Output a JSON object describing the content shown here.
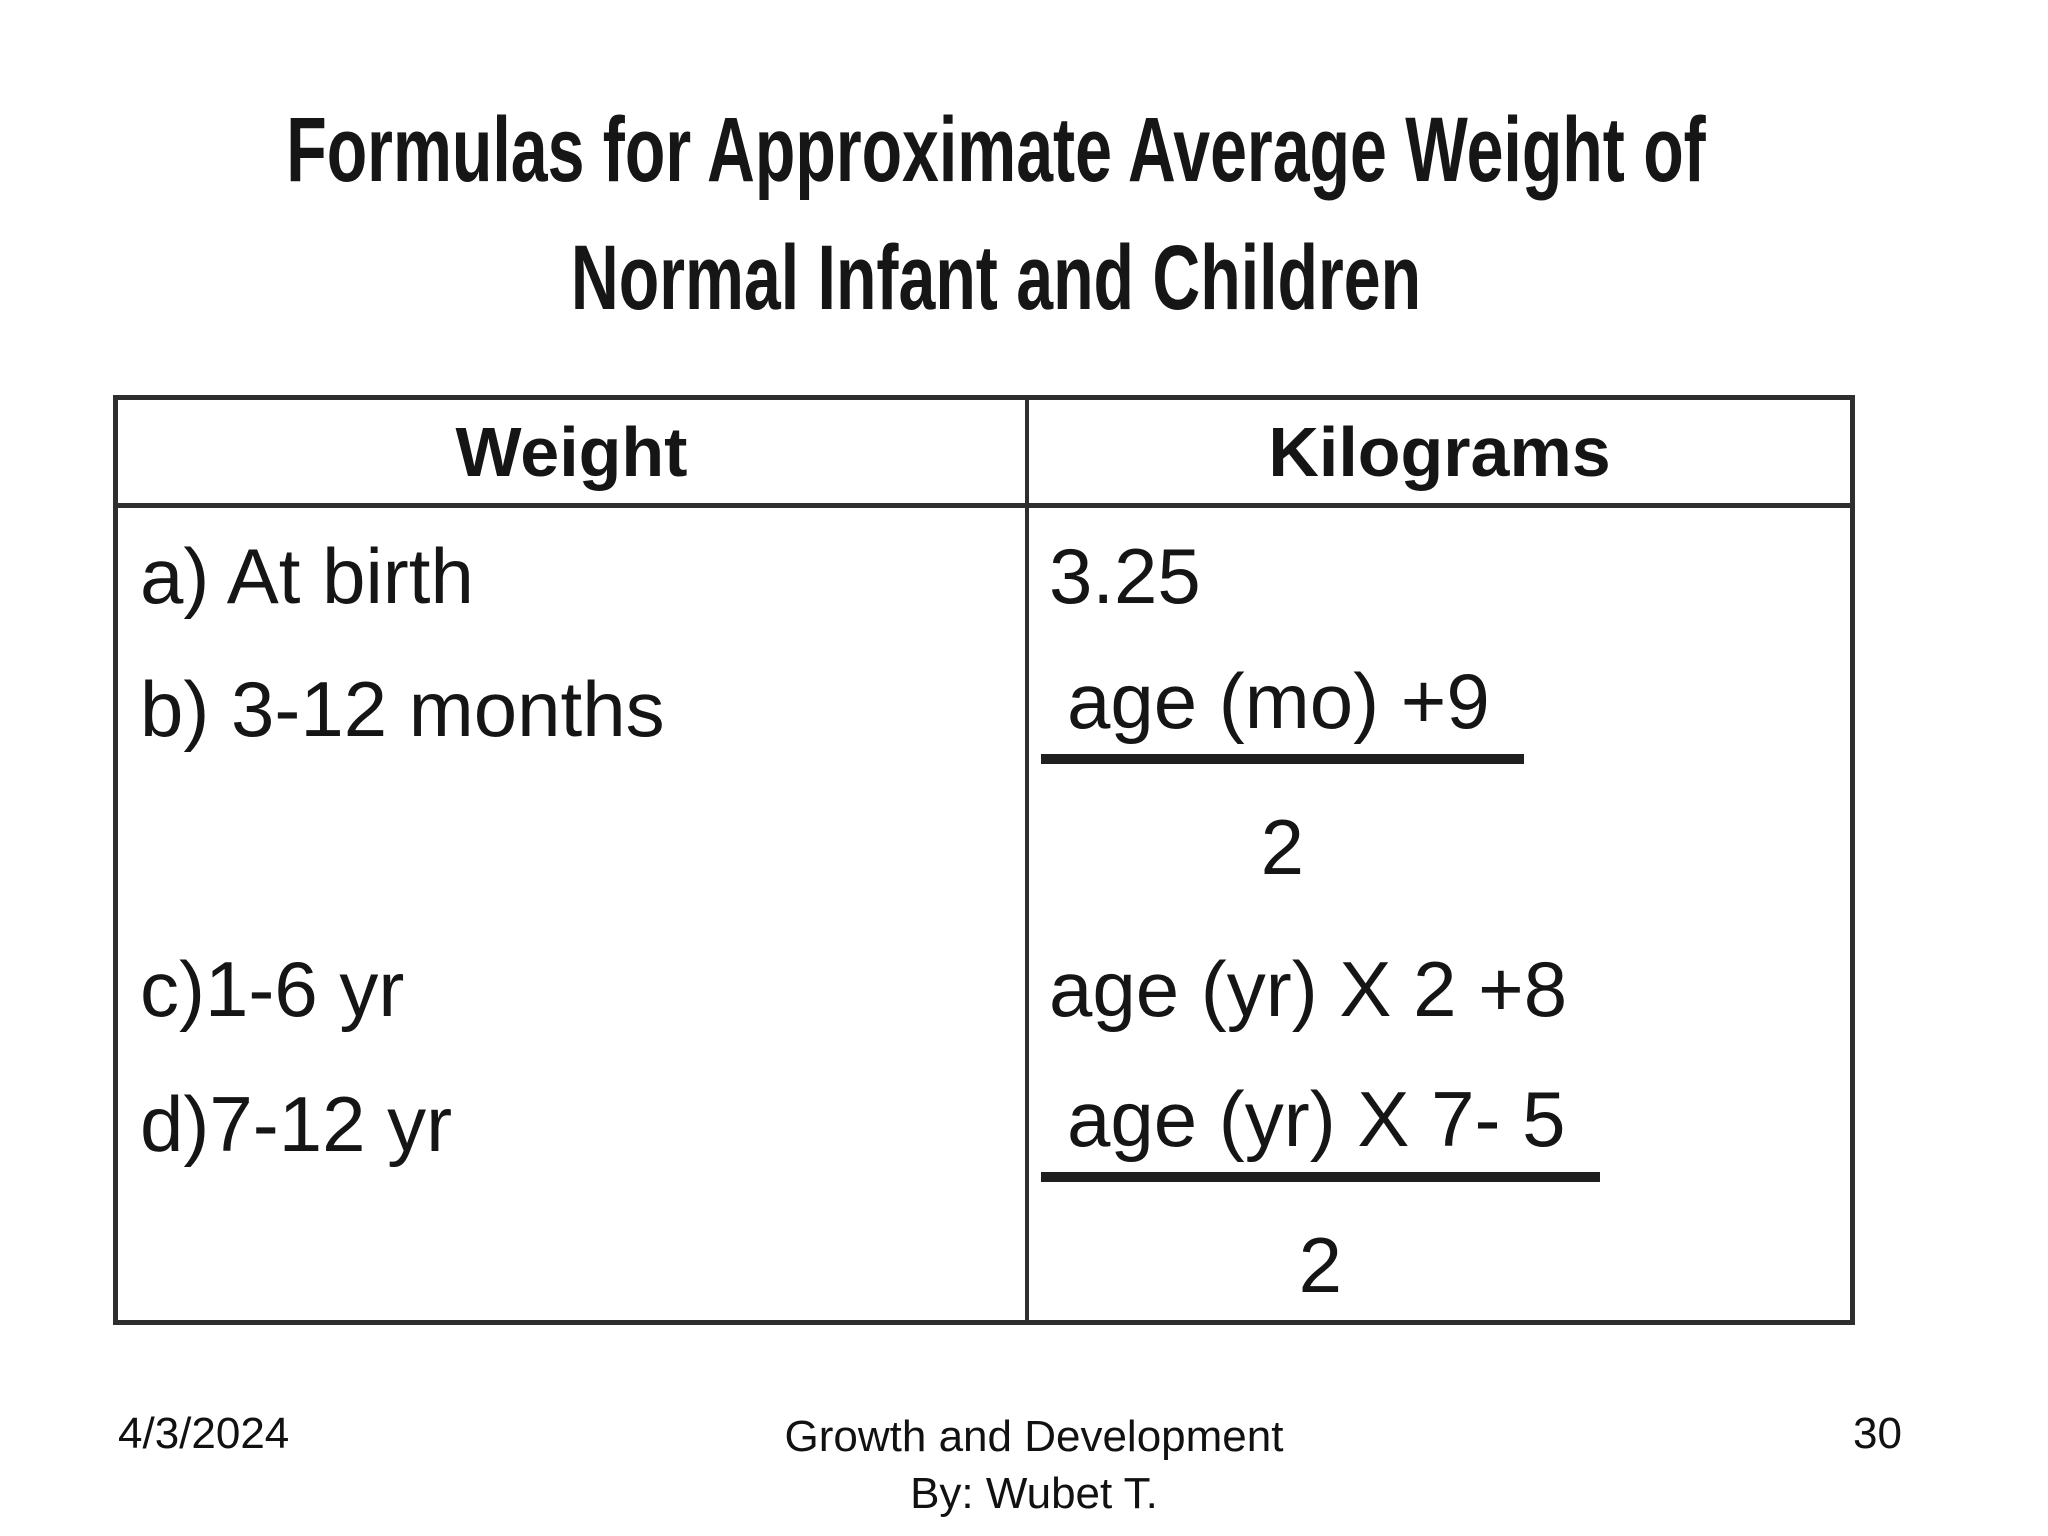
{
  "title": {
    "line1": "Formulas for Approximate Average Weight of",
    "line2": "Normal Infant and Children"
  },
  "table": {
    "header": {
      "col1": "Weight",
      "col2": "Kilograms"
    },
    "rows": {
      "a": {
        "label": "a) At birth",
        "value": "3.25"
      },
      "b": {
        "label": "b) 3-12 months",
        "numerator": "age (mo) +9",
        "denominator": "2"
      },
      "c": {
        "label": "c)1-6 yr",
        "value": "age (yr) X 2 +8"
      },
      "d": {
        "label": "d)7-12 yr",
        "numerator": "age (yr) X 7- 5",
        "denominator": "2"
      }
    }
  },
  "footer": {
    "date": "4/3/2024",
    "subject": "Growth and Development",
    "author": "By: Wubet T.",
    "page": "30"
  },
  "colors": {
    "background": "#ffffff",
    "text": "#151515",
    "border": "#2e2e2e",
    "fraction_bar": "#1f1f1f"
  }
}
